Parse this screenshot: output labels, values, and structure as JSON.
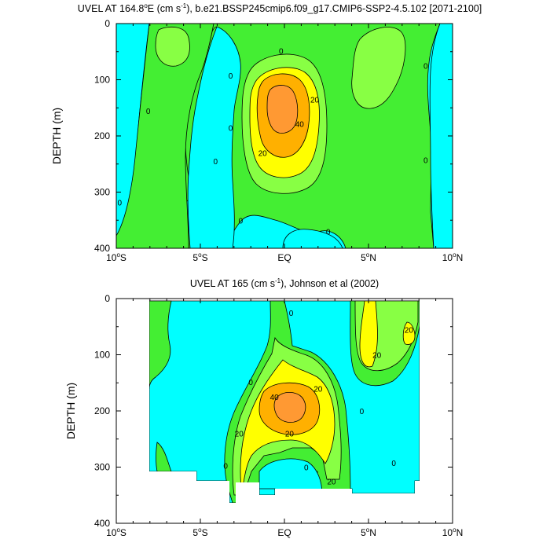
{
  "colors": {
    "cyan": "#00ffff",
    "teal": "#00ffd0",
    "green": "#44ee33",
    "lightgreen": "#88ff44",
    "yellow": "#ffff00",
    "orange": "#ffb000",
    "darkorange": "#ff9933",
    "contour": "#000000"
  },
  "chart_data": [
    {
      "type": "contour",
      "title": "UVEL AT 164.8°E (cm s⁻¹), b.e21.BSSP245cmip6.f09_g17.CMIP6-SSP2-4.5.102 [2071-2100]",
      "title_main": "UVEL AT 164.8",
      "title_deg": "o",
      "title_mid": "E (cm s",
      "title_sup": "-1",
      "title_end": "), b.e21.BSSP245cmip6.f09_g17.CMIP6-SSP2-4.5.102 [2071-2100]",
      "ylabel": "DEPTH (m)",
      "xlabel": "",
      "xlim": [
        -10,
        10
      ],
      "ylim": [
        400,
        0
      ],
      "x_ticks": [
        {
          "value": -10,
          "main": "10",
          "deg": "o",
          "hem": "S"
        },
        {
          "value": -5,
          "main": "5",
          "deg": "o",
          "hem": "S"
        },
        {
          "value": 0,
          "main": "EQ",
          "deg": "",
          "hem": ""
        },
        {
          "value": 5,
          "main": "5",
          "deg": "o",
          "hem": "N"
        },
        {
          "value": 10,
          "main": "10",
          "deg": "o",
          "hem": "N"
        }
      ],
      "y_ticks": [
        {
          "value": 0,
          "label": "0"
        },
        {
          "value": 100,
          "label": "100"
        },
        {
          "value": 200,
          "label": "200"
        },
        {
          "value": 300,
          "label": "300"
        },
        {
          "value": 400,
          "label": "400"
        }
      ],
      "contour_labels": [
        {
          "text": "0",
          "x": -9.8,
          "y": 318
        },
        {
          "text": "0",
          "x": -8.1,
          "y": 155
        },
        {
          "text": "0",
          "x": -4.1,
          "y": 245
        },
        {
          "text": "0",
          "x": -3.2,
          "y": 92
        },
        {
          "text": "0",
          "x": -3.2,
          "y": 185
        },
        {
          "text": "0",
          "x": -2.6,
          "y": 350
        },
        {
          "text": "0",
          "x": -0.2,
          "y": 48
        },
        {
          "text": "0",
          "x": 2.6,
          "y": 370
        },
        {
          "text": "0",
          "x": 8.4,
          "y": 75
        },
        {
          "text": "0",
          "x": 8.4,
          "y": 243
        },
        {
          "text": "20",
          "x": 1.8,
          "y": 135
        },
        {
          "text": "40",
          "x": 0.9,
          "y": 178
        },
        {
          "text": "20",
          "x": -1.3,
          "y": 230
        }
      ],
      "regions": [
        {
          "level": "0 to 10 cm/s",
          "color": "green"
        },
        {
          "level": "10 to 20 cm/s",
          "color": "lightgreen"
        },
        {
          "level": "20 to 30 cm/s",
          "color": "yellow"
        },
        {
          "level": "30 to 40 cm/s",
          "color": "orange"
        },
        {
          "level": "40+ cm/s",
          "color": "darkorange"
        },
        {
          "level": "below 0 cm/s",
          "color": "cyan"
        }
      ]
    },
    {
      "type": "contour",
      "title": "UVEL AT 165 (cm s⁻¹), Johnson et al (2002)",
      "title_main": "UVEL AT 165 (cm s",
      "title_sup": "-1",
      "title_end": "), Johnson et al (2002)",
      "ylabel": "DEPTH (m)",
      "xlabel": "",
      "xlim": [
        -10,
        10
      ],
      "ylim": [
        400,
        0
      ],
      "x_ticks": [
        {
          "value": -10,
          "main": "10",
          "deg": "o",
          "hem": "S"
        },
        {
          "value": -5,
          "main": "5",
          "deg": "o",
          "hem": "S"
        },
        {
          "value": 0,
          "main": "EQ",
          "deg": "",
          "hem": ""
        },
        {
          "value": 5,
          "main": "5",
          "deg": "o",
          "hem": "N"
        },
        {
          "value": 10,
          "main": "10",
          "deg": "o",
          "hem": "N"
        }
      ],
      "y_ticks": [
        {
          "value": 0,
          "label": "0"
        },
        {
          "value": 100,
          "label": "100"
        },
        {
          "value": 200,
          "label": "200"
        },
        {
          "value": 300,
          "label": "300"
        },
        {
          "value": 400,
          "label": "400"
        }
      ],
      "data_extent": {
        "x": [
          -8,
          8
        ],
        "y": [
          5,
          345
        ]
      },
      "contour_labels": [
        {
          "text": "0",
          "x": 0.4,
          "y": 25
        },
        {
          "text": "0",
          "x": -2.0,
          "y": 148
        },
        {
          "text": "20",
          "x": 2.0,
          "y": 160
        },
        {
          "text": "40",
          "x": -0.6,
          "y": 175
        },
        {
          "text": "20",
          "x": -2.7,
          "y": 240
        },
        {
          "text": "20",
          "x": 0.3,
          "y": 240
        },
        {
          "text": "0",
          "x": 4.6,
          "y": 200
        },
        {
          "text": "0",
          "x": 1.3,
          "y": 300
        },
        {
          "text": "0",
          "x": -3.5,
          "y": 297
        },
        {
          "text": "20",
          "x": 2.8,
          "y": 325
        },
        {
          "text": "20",
          "x": 5.5,
          "y": 100
        },
        {
          "text": "20",
          "x": 7.4,
          "y": 55
        },
        {
          "text": "0",
          "x": 6.5,
          "y": 292
        }
      ],
      "regions": [
        {
          "level": "0 to 10 cm/s",
          "color": "green"
        },
        {
          "level": "10 to 20 cm/s",
          "color": "lightgreen"
        },
        {
          "level": "20 to 30 cm/s",
          "color": "yellow"
        },
        {
          "level": "30 to 40 cm/s",
          "color": "orange"
        },
        {
          "level": "40+ cm/s",
          "color": "darkorange"
        },
        {
          "level": "below 0 cm/s",
          "color": "cyan"
        }
      ]
    }
  ]
}
